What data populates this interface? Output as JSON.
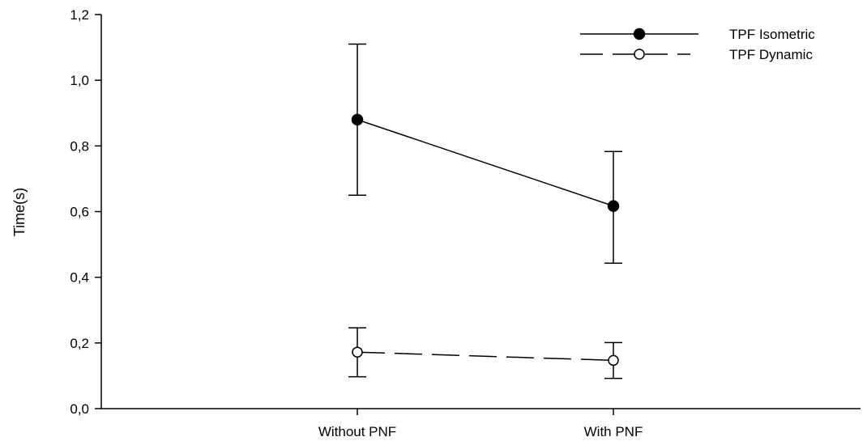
{
  "chart_data": {
    "type": "line",
    "title": "",
    "xlabel": "",
    "ylabel": "Time(s)",
    "categories": [
      "Without PNF",
      "With PNF"
    ],
    "ylim": [
      0,
      1.2
    ],
    "yticks": [
      "0,0",
      "0,2",
      "0,4",
      "0,6",
      "0,8",
      "1,0",
      "1,2"
    ],
    "grid": false,
    "legend_position": "top-right",
    "series": [
      {
        "name": "TPF Isometric",
        "values": [
          0.88,
          0.617
        ],
        "error_low": [
          0.65,
          0.443
        ],
        "error_high": [
          1.11,
          0.783
        ],
        "marker": "filled-circle",
        "line_style": "solid",
        "color": "#000000"
      },
      {
        "name": "TPF Dynamic",
        "values": [
          0.172,
          0.147
        ],
        "error_low": [
          0.097,
          0.092
        ],
        "error_high": [
          0.246,
          0.201
        ],
        "marker": "open-circle",
        "line_style": "dashed",
        "color": "#000000"
      }
    ]
  }
}
